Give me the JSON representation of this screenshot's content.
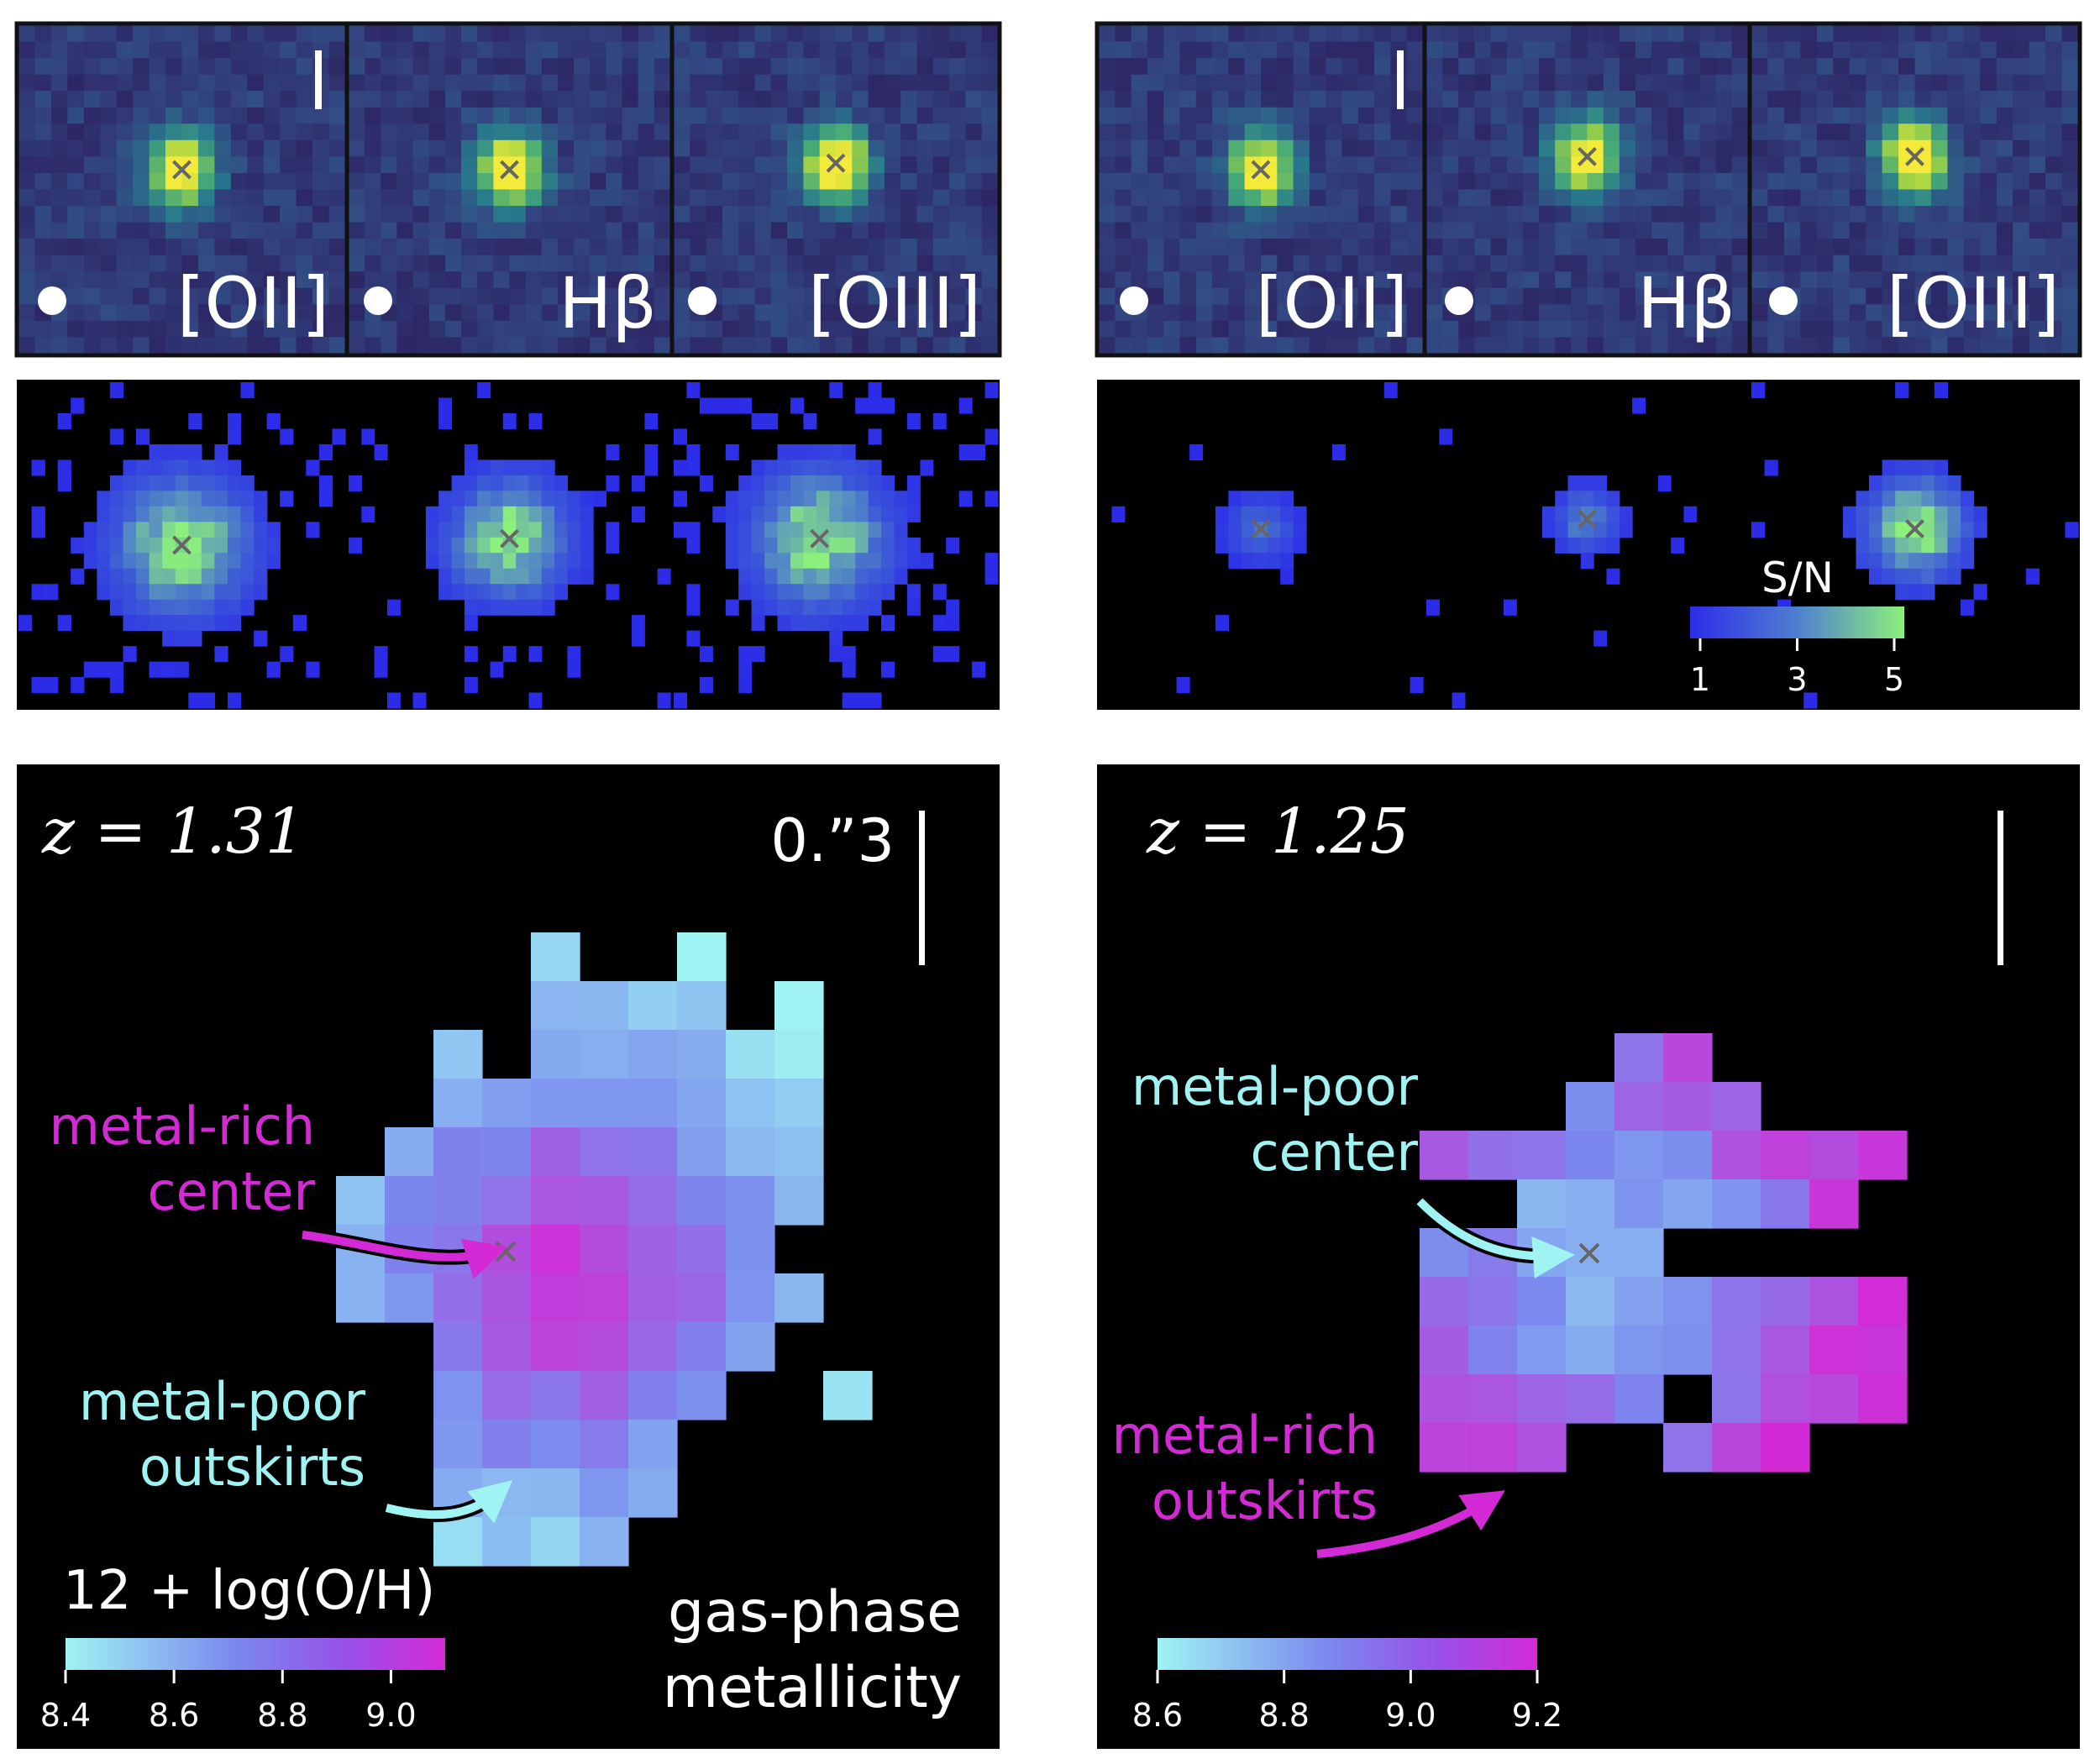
{
  "galaxies": [
    {
      "id": "left",
      "emission_panels": [
        {
          "line": "[OII]",
          "show_psf_dot": true,
          "show_scale_tick": true
        },
        {
          "line": "Hβ",
          "show_psf_dot": true,
          "show_scale_tick": false
        },
        {
          "line": "[OIII]",
          "show_psf_dot": true,
          "show_scale_tick": false
        }
      ],
      "redshift": "z = 1.31",
      "scale_label": "0.”3",
      "annotations": {
        "center_line1": "metal-rich",
        "center_line2": "center",
        "outskirts_line1": "metal-poor",
        "outskirts_line2": "outskirts"
      },
      "colorbar": {
        "title": "12 + log(O/H)",
        "ticks": [
          "8.4",
          "8.6",
          "8.8",
          "9.0"
        ],
        "min": 8.4,
        "max": 9.1
      },
      "map_label_line1": "gas-phase",
      "map_label_line2": "metallicity"
    },
    {
      "id": "right",
      "emission_panels": [
        {
          "line": "[OII]",
          "show_psf_dot": true,
          "show_scale_tick": true
        },
        {
          "line": "Hβ",
          "show_psf_dot": true,
          "show_scale_tick": false
        },
        {
          "line": "[OIII]",
          "show_psf_dot": true,
          "show_scale_tick": false
        }
      ],
      "redshift": "z = 1.25",
      "annotations": {
        "center_line1": "metal-poor",
        "center_line2": "center",
        "outskirts_line1": "metal-rich",
        "outskirts_line2": "outskirts"
      },
      "colorbar": {
        "ticks": [
          "8.6",
          "8.8",
          "9.0",
          "9.2"
        ],
        "min": 8.6,
        "max": 9.2
      }
    }
  ],
  "sn_colorbar": {
    "title": "S/N",
    "ticks": [
      "1",
      "3",
      "5"
    ]
  },
  "colors": {
    "metal_poor": "#9ff3f3",
    "metal_rich": "#d42ad6",
    "sn_low": "#2c2ce8",
    "sn_high": "#8cf07a",
    "viridis_dark": "#2b1d5c",
    "viridis_bright": "#f3ea3a"
  }
}
